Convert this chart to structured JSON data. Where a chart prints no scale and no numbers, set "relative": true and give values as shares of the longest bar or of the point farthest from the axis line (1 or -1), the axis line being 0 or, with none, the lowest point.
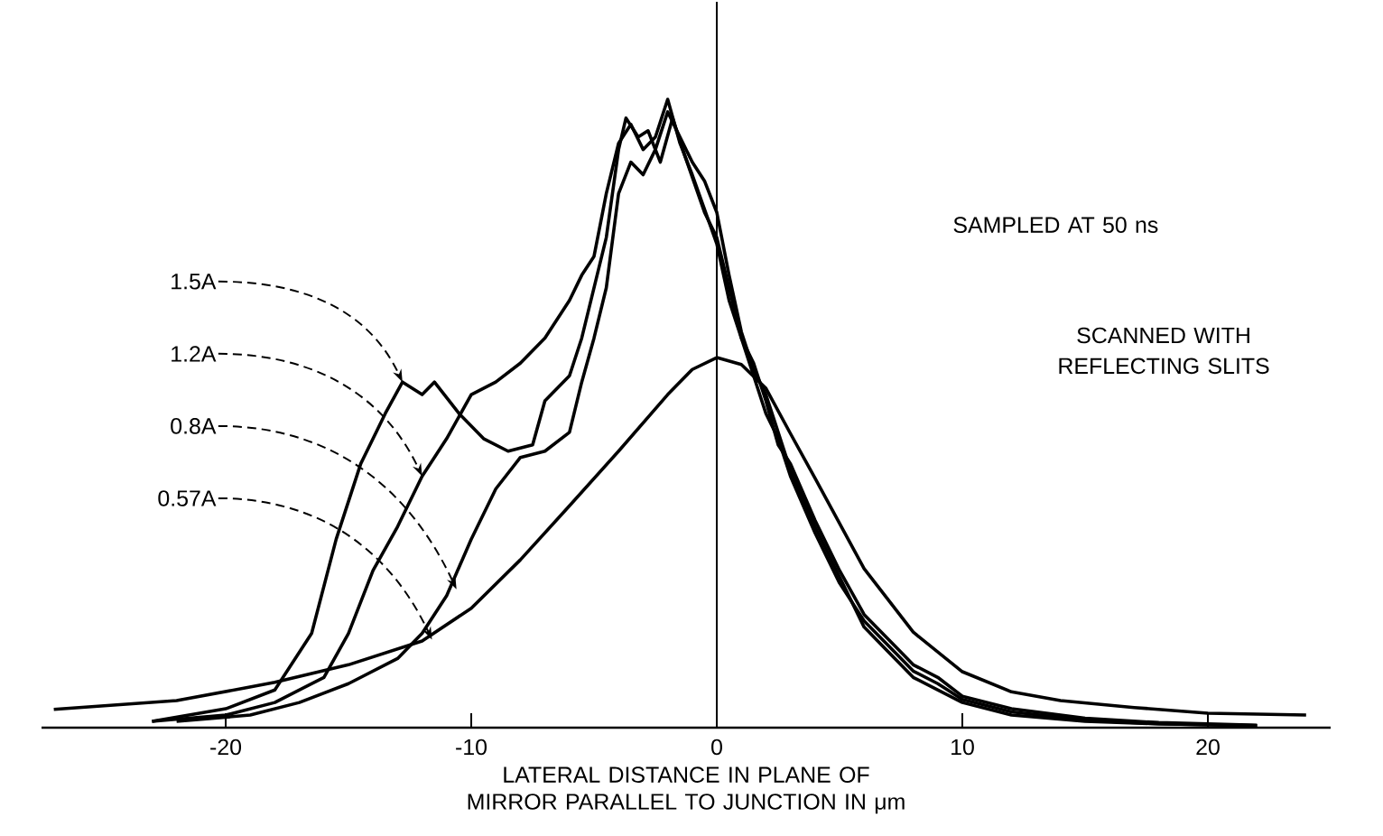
{
  "chart_data": {
    "type": "line",
    "relative": true,
    "xlabel": "LATERAL DISTANCE IN PLANE OF MIRROR PARALLEL TO JUNCTION IN μm",
    "xlim": [
      -27.5,
      25
    ],
    "xticks": [
      -20,
      -10,
      0,
      10,
      20
    ],
    "grid": false,
    "marker": "none",
    "line_style": "solid",
    "ref_lines": [
      {
        "axis": "x",
        "value": 0,
        "color": "#000000"
      }
    ],
    "annotations": [
      {
        "text": "1.5A",
        "x": -12.8,
        "y": 0.55
      },
      {
        "text": "1.2A",
        "x": -12.0,
        "y": 0.4
      },
      {
        "text": "0.8A",
        "x": -10.6,
        "y": 0.22
      },
      {
        "text": "0.57A",
        "x": -11.6,
        "y": 0.14
      },
      "SAMPLED AT 50 ns",
      "SCANNED WITH REFLECTING SLITS"
    ],
    "series": [
      {
        "color": "#000000",
        "x": [
          -23,
          -20,
          -18,
          -16.5,
          -15.5,
          -14.5,
          -13.5,
          -12.8,
          -12,
          -11.5,
          -10.5,
          -9.5,
          -8.5,
          -7.5,
          -7,
          -6,
          -5.5,
          -5,
          -4.5,
          -4,
          -3.7,
          -3.2,
          -2.8,
          -2.3,
          -1.8,
          -1.3,
          -0.5,
          0,
          0.5,
          1,
          1.5,
          2,
          2.5,
          3,
          4,
          5,
          6,
          7,
          8,
          9,
          10,
          12,
          15,
          18,
          22
        ],
        "values": [
          0.01,
          0.03,
          0.06,
          0.15,
          0.3,
          0.42,
          0.5,
          0.55,
          0.53,
          0.55,
          0.5,
          0.46,
          0.44,
          0.45,
          0.52,
          0.56,
          0.62,
          0.7,
          0.78,
          0.92,
          0.97,
          0.94,
          0.95,
          0.9,
          0.97,
          0.91,
          0.82,
          0.78,
          0.7,
          0.62,
          0.58,
          0.52,
          0.45,
          0.42,
          0.33,
          0.25,
          0.18,
          0.14,
          0.1,
          0.08,
          0.05,
          0.03,
          0.015,
          0.008,
          0.004
        ]
      },
      {
        "color": "#000000",
        "x": [
          -23,
          -20,
          -18,
          -16,
          -15,
          -14,
          -13,
          -12,
          -11,
          -10,
          -9,
          -8,
          -7,
          -6,
          -5.5,
          -5,
          -4.5,
          -4,
          -3.5,
          -3,
          -2.5,
          -2,
          -1.5,
          -1,
          0,
          0.5,
          1,
          1.5,
          2,
          2.5,
          3,
          4,
          5,
          6,
          7,
          8,
          9,
          10,
          12,
          15,
          18,
          22
        ],
        "values": [
          0.01,
          0.02,
          0.04,
          0.08,
          0.15,
          0.25,
          0.32,
          0.4,
          0.46,
          0.53,
          0.55,
          0.58,
          0.62,
          0.68,
          0.72,
          0.75,
          0.85,
          0.93,
          0.96,
          0.92,
          0.94,
          1.0,
          0.93,
          0.88,
          0.77,
          0.68,
          0.62,
          0.56,
          0.5,
          0.46,
          0.4,
          0.31,
          0.23,
          0.17,
          0.13,
          0.09,
          0.07,
          0.045,
          0.025,
          0.012,
          0.006,
          0.003
        ]
      },
      {
        "color": "#000000",
        "x": [
          -22,
          -19,
          -17,
          -15,
          -13,
          -12,
          -11,
          -10,
          -9,
          -8,
          -7,
          -6,
          -5.5,
          -5,
          -4.5,
          -4,
          -3.5,
          -3,
          -2.5,
          -2,
          -1.5,
          -1,
          -0.5,
          0,
          0.5,
          1,
          1.5,
          2,
          2.5,
          3,
          4,
          5,
          6,
          7,
          8,
          9,
          10,
          12,
          15,
          18,
          22
        ],
        "values": [
          0.01,
          0.02,
          0.04,
          0.07,
          0.11,
          0.15,
          0.21,
          0.3,
          0.38,
          0.43,
          0.44,
          0.47,
          0.55,
          0.62,
          0.7,
          0.85,
          0.9,
          0.88,
          0.92,
          0.98,
          0.94,
          0.9,
          0.87,
          0.82,
          0.72,
          0.63,
          0.57,
          0.53,
          0.47,
          0.41,
          0.32,
          0.24,
          0.16,
          0.12,
          0.08,
          0.06,
          0.04,
          0.02,
          0.01,
          0.006,
          0.003
        ]
      },
      {
        "color": "#000000",
        "x": [
          -27,
          -22,
          -18,
          -15,
          -12,
          -10,
          -8,
          -6,
          -4,
          -2,
          -1,
          0,
          1,
          2,
          3,
          4,
          6,
          8,
          10,
          12,
          14,
          17,
          20,
          24
        ],
        "values": [
          0.029,
          0.043,
          0.072,
          0.1,
          0.138,
          0.19,
          0.267,
          0.353,
          0.44,
          0.53,
          0.57,
          0.589,
          0.578,
          0.54,
          0.468,
          0.397,
          0.253,
          0.152,
          0.089,
          0.057,
          0.043,
          0.032,
          0.023,
          0.02
        ]
      }
    ]
  }
}
